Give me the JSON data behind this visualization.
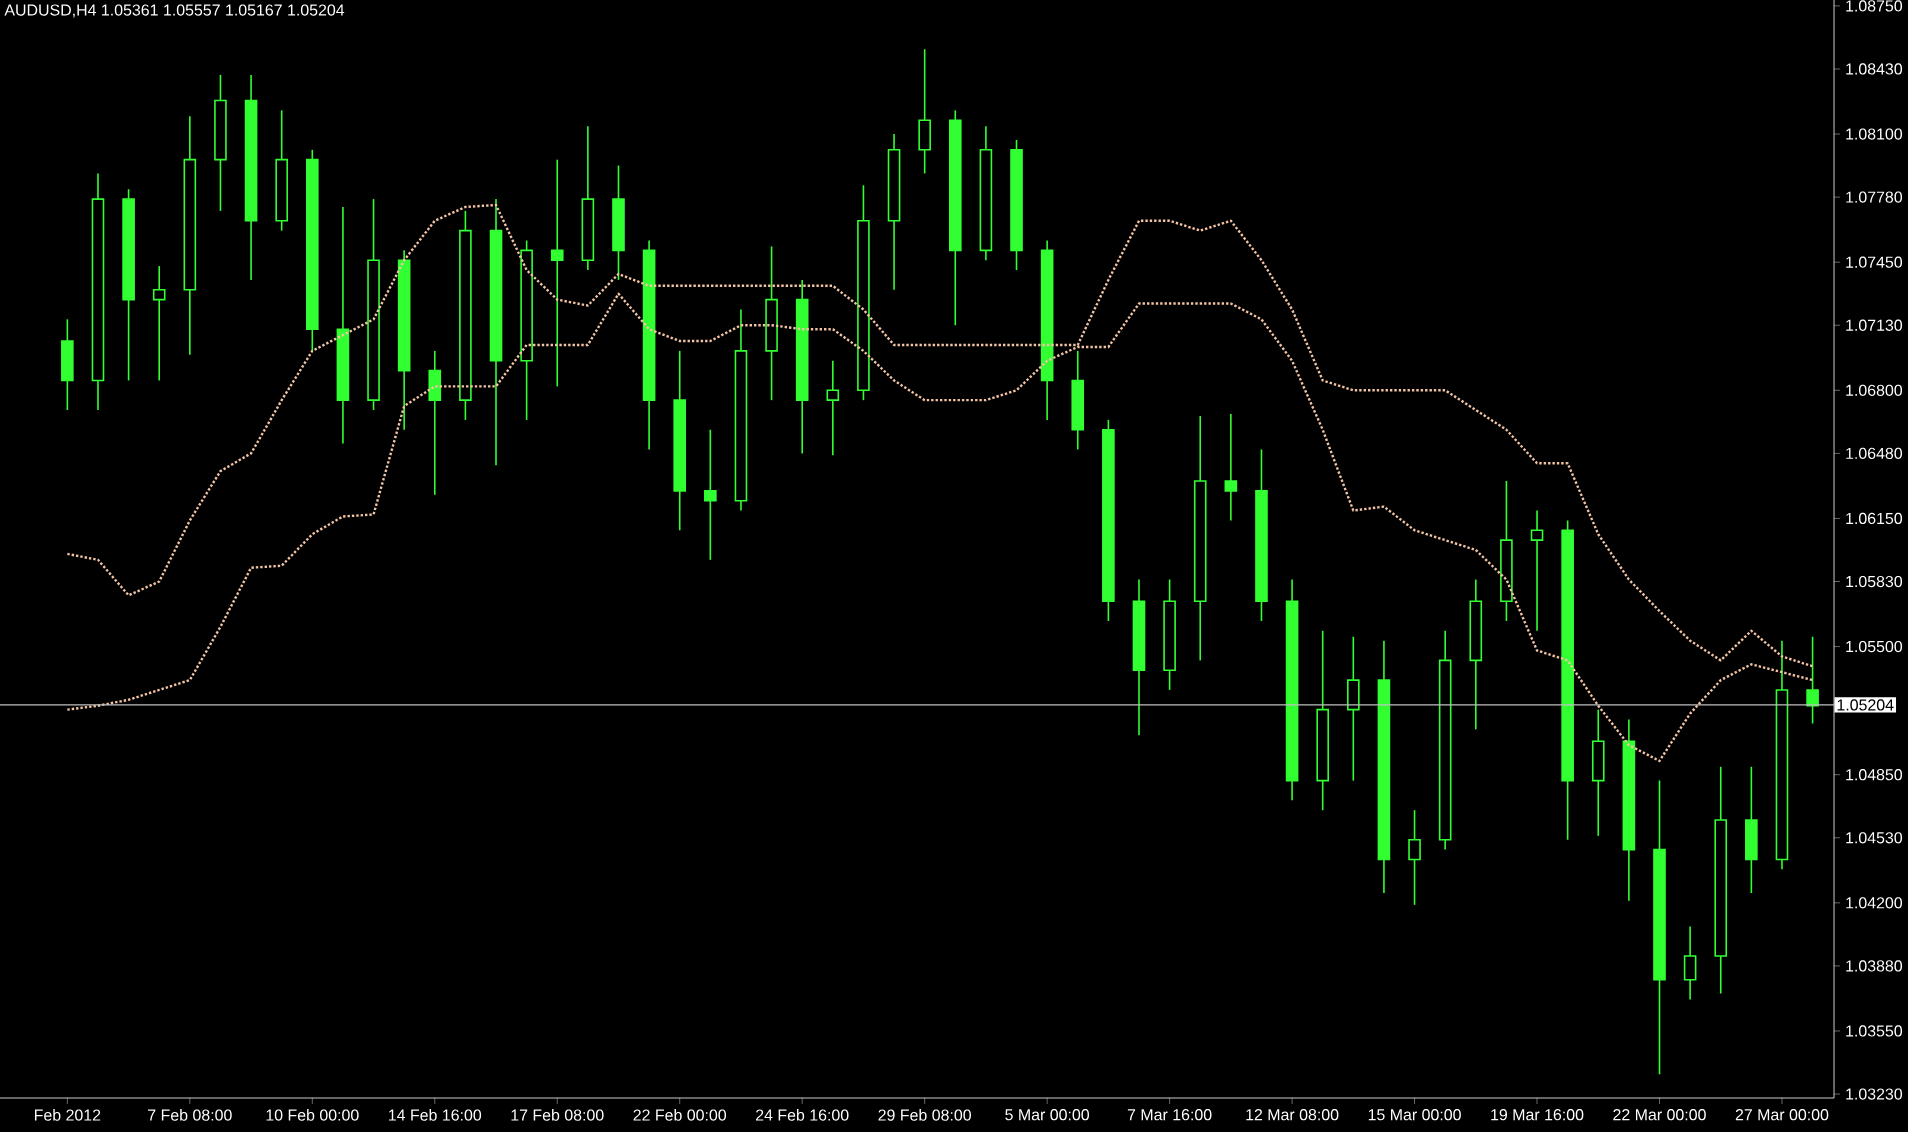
{
  "chart_data": {
    "type": "candlestick",
    "title": "AUDUSD,H4  1.05361 1.05557 1.05167 1.05204",
    "color": "#32ff32",
    "categories": [
      "Feb 2012",
      null,
      null,
      null,
      "7 Feb 08:00",
      null,
      null,
      null,
      "10 Feb 00:00",
      null,
      null,
      null,
      "14 Feb 16:00",
      null,
      null,
      null,
      "17 Feb 08:00",
      null,
      null,
      null,
      "22 Feb 00:00",
      null,
      null,
      null,
      "24 Feb 16:00",
      null,
      null,
      null,
      "29 Feb 08:00",
      null,
      null,
      null,
      "5 Mar 00:00",
      null,
      null,
      null,
      "7 Mar 16:00",
      null,
      null,
      null,
      "12 Mar 08:00",
      null,
      null,
      null,
      "15 Mar 00:00",
      null,
      null,
      null,
      "19 Mar 16:00",
      null,
      null,
      null,
      "22 Mar 00:00",
      null,
      null,
      null,
      "27 Mar 00:00",
      null
    ],
    "ohlc": [
      [
        1.0705,
        1.0716,
        1.067,
        1.0685
      ],
      [
        1.0685,
        1.079,
        1.067,
        1.0777
      ],
      [
        1.0777,
        1.0782,
        1.0685,
        1.0726
      ],
      [
        1.0726,
        1.0743,
        1.0685,
        1.0731
      ],
      [
        1.0731,
        1.0819,
        1.0698,
        1.0797
      ],
      [
        1.0797,
        1.084,
        1.0771,
        1.0827
      ],
      [
        1.0827,
        1.084,
        1.0736,
        1.0766
      ],
      [
        1.0766,
        1.0822,
        1.0761,
        1.0797
      ],
      [
        1.0797,
        1.0802,
        1.07,
        1.0711
      ],
      [
        1.0711,
        1.0773,
        1.0653,
        1.0675
      ],
      [
        1.0675,
        1.0777,
        1.067,
        1.0746
      ],
      [
        1.0746,
        1.0751,
        1.066,
        1.069
      ],
      [
        1.069,
        1.07,
        1.0627,
        1.0675
      ],
      [
        1.0675,
        1.0771,
        1.0665,
        1.0761
      ],
      [
        1.0761,
        1.0777,
        1.0642,
        1.0695
      ],
      [
        1.0695,
        1.0756,
        1.0665,
        1.0751
      ],
      [
        1.0751,
        1.0797,
        1.0682,
        1.0746
      ],
      [
        1.0746,
        1.0814,
        1.0741,
        1.0777
      ],
      [
        1.0777,
        1.0794,
        1.0736,
        1.0751
      ],
      [
        1.0751,
        1.0756,
        1.065,
        1.0675
      ],
      [
        1.0675,
        1.07,
        1.0609,
        1.0629
      ],
      [
        1.0629,
        1.066,
        1.0594,
        1.0624
      ],
      [
        1.0624,
        1.0721,
        1.0619,
        1.07
      ],
      [
        1.07,
        1.0753,
        1.0675,
        1.0726
      ],
      [
        1.0726,
        1.0736,
        1.0648,
        1.0675
      ],
      [
        1.0675,
        1.0695,
        1.0647,
        1.068
      ],
      [
        1.068,
        1.0784,
        1.0675,
        1.0766
      ],
      [
        1.0766,
        1.081,
        1.0731,
        1.0802
      ],
      [
        1.0802,
        1.0853,
        1.079,
        1.0817
      ],
      [
        1.0817,
        1.0822,
        1.0713,
        1.0751
      ],
      [
        1.0751,
        1.0814,
        1.0746,
        1.0802
      ],
      [
        1.0802,
        1.0807,
        1.0741,
        1.0751
      ],
      [
        1.0751,
        1.0756,
        1.0665,
        1.0685
      ],
      [
        1.0685,
        1.07,
        1.065,
        1.066
      ],
      [
        1.066,
        1.0665,
        1.0563,
        1.0573
      ],
      [
        1.0573,
        1.0584,
        1.0505,
        1.0538
      ],
      [
        1.0538,
        1.0584,
        1.0528,
        1.0573
      ],
      [
        1.0573,
        1.0667,
        1.0543,
        1.0634
      ],
      [
        1.0634,
        1.0668,
        1.0614,
        1.0629
      ],
      [
        1.0629,
        1.065,
        1.0563,
        1.0573
      ],
      [
        1.0573,
        1.0584,
        1.0472,
        1.0482
      ],
      [
        1.0482,
        1.0558,
        1.0467,
        1.0518
      ],
      [
        1.0518,
        1.0555,
        1.0482,
        1.0533
      ],
      [
        1.0533,
        1.0553,
        1.0425,
        1.0442
      ],
      [
        1.0442,
        1.0467,
        1.0419,
        1.0452
      ],
      [
        1.0452,
        1.0558,
        1.0447,
        1.0543
      ],
      [
        1.0543,
        1.0584,
        1.0508,
        1.0573
      ],
      [
        1.0573,
        1.0634,
        1.0563,
        1.0604
      ],
      [
        1.0604,
        1.0619,
        1.0558,
        1.0609
      ],
      [
        1.0609,
        1.0614,
        1.0452,
        1.0482
      ],
      [
        1.0482,
        1.0518,
        1.0454,
        1.0502
      ],
      [
        1.0502,
        1.0513,
        1.0421,
        1.0447
      ],
      [
        1.0447,
        1.0482,
        1.0333,
        1.0381
      ],
      [
        1.0381,
        1.0408,
        1.0371,
        1.0393
      ],
      [
        1.0393,
        1.0489,
        1.0374,
        1.0462
      ],
      [
        1.0462,
        1.0489,
        1.0425,
        1.0442
      ],
      [
        1.0442,
        1.0553,
        1.0437,
        1.0528
      ],
      [
        1.0528,
        1.0555,
        1.0511,
        1.052
      ]
    ],
    "series": [
      {
        "type": "line",
        "color": "#f2c4a4",
        "line_style": "dotted",
        "values": [
          1.0597,
          1.0594,
          1.0576,
          1.0583,
          1.0614,
          1.0639,
          1.0648,
          1.0675,
          1.07,
          1.0708,
          1.0716,
          1.0746,
          1.0766,
          1.0773,
          1.0774,
          1.0741,
          1.0726,
          1.0723,
          1.0739,
          1.0733,
          1.0733,
          1.0733,
          1.0733,
          1.0733,
          1.0733,
          1.0733,
          1.0721,
          1.0703,
          1.0703,
          1.0703,
          1.0703,
          1.0703,
          1.0703,
          1.0703,
          1.0736,
          1.0766,
          1.0766,
          1.0761,
          1.0766,
          1.0746,
          1.0721,
          1.0685,
          1.068,
          1.068,
          1.068,
          1.068,
          1.067,
          1.066,
          1.0643,
          1.0643,
          1.0607,
          1.0584,
          1.0568,
          1.0553,
          1.0543,
          1.0558,
          1.0545,
          1.054
        ]
      },
      {
        "type": "line",
        "color": "#f2c4a4",
        "line_style": "dotted",
        "values": [
          1.0518,
          1.052,
          1.0523,
          1.0528,
          1.0533,
          1.056,
          1.059,
          1.0591,
          1.0607,
          1.0616,
          1.0617,
          1.0672,
          1.0682,
          1.0682,
          1.0682,
          1.0703,
          1.0703,
          1.0703,
          1.0729,
          1.0711,
          1.0705,
          1.0705,
          1.0713,
          1.0713,
          1.0711,
          1.0711,
          1.07,
          1.0685,
          1.0675,
          1.0675,
          1.0675,
          1.068,
          1.0695,
          1.0702,
          1.0702,
          1.0724,
          1.0724,
          1.0724,
          1.0724,
          1.0716,
          1.0695,
          1.066,
          1.0619,
          1.0621,
          1.0609,
          1.0604,
          1.0599,
          1.0584,
          1.0548,
          1.0543,
          1.052,
          1.05,
          1.0492,
          1.0516,
          1.0533,
          1.0541,
          1.0537,
          1.0533
        ]
      }
    ],
    "ylim": [
      1.0321,
      1.0878
    ],
    "yticks": [
      {
        "value": 1.0875,
        "label": "1.08750"
      },
      {
        "value": 1.0843,
        "label": "1.08430"
      },
      {
        "value": 1.081,
        "label": "1.08100"
      },
      {
        "value": 1.0778,
        "label": "1.07780"
      },
      {
        "value": 1.0745,
        "label": "1.07450"
      },
      {
        "value": 1.0713,
        "label": "1.07130"
      },
      {
        "value": 1.068,
        "label": "1.06800"
      },
      {
        "value": 1.0648,
        "label": "1.06480"
      },
      {
        "value": 1.0615,
        "label": "1.06150"
      },
      {
        "value": 1.0583,
        "label": "1.05830"
      },
      {
        "value": 1.055,
        "label": "1.05500"
      },
      {
        "value": 1.0485,
        "label": "1.04850"
      },
      {
        "value": 1.0453,
        "label": "1.04530"
      },
      {
        "value": 1.042,
        "label": "1.04200"
      },
      {
        "value": 1.0388,
        "label": "1.03880"
      },
      {
        "value": 1.0355,
        "label": "1.03550"
      },
      {
        "value": 1.0323,
        "label": "1.03230"
      }
    ],
    "ref_lines": [
      {
        "axis": "y",
        "value": 1.05204,
        "label": "1.05204",
        "color": "#c0c0c0"
      }
    ]
  }
}
